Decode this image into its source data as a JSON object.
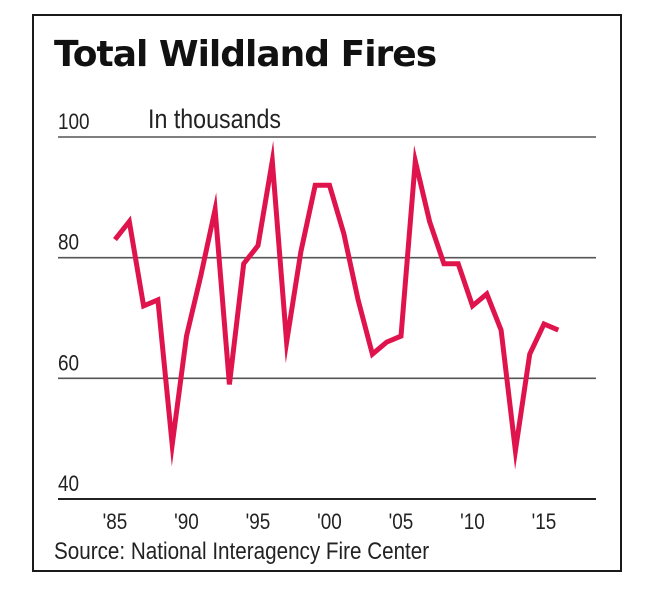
{
  "chart_data": {
    "type": "line",
    "title": "Total Wildland Fires",
    "subtitle": "In thousands",
    "source": "Source: National Interagency Fire Center",
    "xlabel": "",
    "ylabel": "",
    "ylim": [
      40,
      100
    ],
    "xlim": [
      1985,
      2017
    ],
    "y_ticks": [
      40,
      60,
      80,
      100
    ],
    "y_tick_labels": [
      "40",
      "60",
      "80",
      "100"
    ],
    "x_ticks": [
      1985,
      1990,
      1995,
      2000,
      2005,
      2010,
      2015
    ],
    "x_tick_labels": [
      "'85",
      "'90",
      "'95",
      "'00",
      "'05",
      "'10",
      "'15"
    ],
    "grid": "horizontal",
    "line_color": "#e0144c",
    "series": [
      {
        "x": [
          1985,
          1986,
          1987,
          1988,
          1989,
          1990,
          1991,
          1992,
          1993,
          1994,
          1995,
          1996,
          1997,
          1998,
          1999,
          2000,
          2001,
          2002,
          2003,
          2004,
          2005,
          2006,
          2007,
          2008,
          2009,
          2010,
          2011,
          2012,
          2013,
          2014,
          2015,
          2016
        ],
        "values": [
          83,
          86,
          72,
          73,
          49,
          67,
          77,
          88,
          59,
          79,
          82,
          96,
          66,
          81,
          92,
          92,
          84,
          73,
          64,
          66,
          67,
          96,
          86,
          79,
          79,
          72,
          74,
          68,
          48,
          64,
          69,
          68
        ]
      }
    ]
  }
}
